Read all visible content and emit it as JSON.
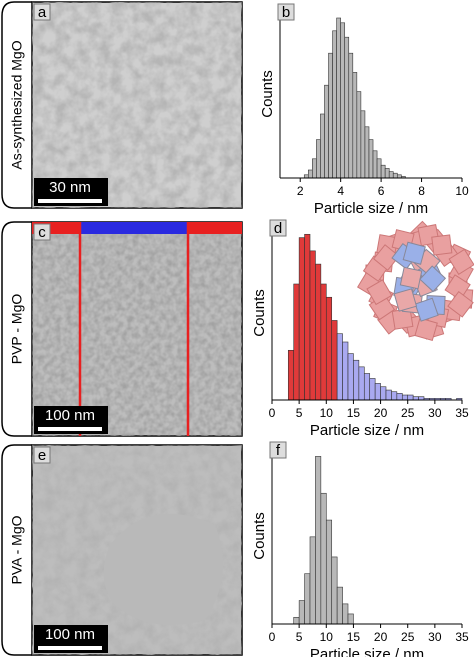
{
  "panels": [
    {
      "label": "a",
      "sample": "As-synthesized MgO",
      "scale_bar": "30 nm"
    },
    {
      "label": "c",
      "sample": "PVP - MgO",
      "scale_bar": "100 nm"
    },
    {
      "label": "e",
      "sample": "PVA - MgO",
      "scale_bar": "100 nm"
    }
  ],
  "chart_data": [
    {
      "type": "histogram",
      "label": "b",
      "xlabel": "Particle size / nm",
      "ylabel": "Counts",
      "xlim": [
        1,
        10
      ],
      "xticks": [
        2,
        4,
        6,
        8,
        10
      ],
      "ylim": [
        0,
        105
      ],
      "series": [
        {
          "color": "#b8b8b8",
          "bins": [
            2.2,
            2.4,
            2.6,
            2.8,
            3.0,
            3.2,
            3.4,
            3.6,
            3.8,
            4.0,
            4.2,
            4.4,
            4.6,
            4.8,
            5.0,
            5.2,
            5.4,
            5.6,
            5.8,
            6.0,
            6.2,
            6.4,
            6.6,
            6.8,
            7.0,
            7.2
          ],
          "values": [
            2,
            5,
            12,
            24,
            40,
            58,
            78,
            92,
            100,
            97,
            88,
            78,
            66,
            54,
            42,
            32,
            24,
            17,
            12,
            8,
            6,
            4,
            3,
            2,
            1
          ]
        }
      ]
    },
    {
      "type": "histogram",
      "label": "d",
      "xlabel": "Particle size / nm",
      "ylabel": "Counts",
      "xlim": [
        0,
        35
      ],
      "xticks": [
        0,
        5,
        10,
        15,
        20,
        25,
        30,
        35
      ],
      "ylim": [
        0,
        105
      ],
      "series": [
        {
          "color": "#e03a3a",
          "bins": [
            3,
            4,
            5,
            6,
            7,
            8,
            9,
            10,
            11,
            12
          ],
          "values": [
            30,
            70,
            98,
            100,
            90,
            82,
            70,
            62,
            48
          ]
        },
        {
          "color": "#a9a9f0",
          "bins": [
            12,
            13,
            14,
            15,
            16,
            17,
            18,
            19,
            20,
            21,
            22,
            23,
            24,
            25,
            26,
            27,
            28,
            29,
            30,
            31,
            32,
            33,
            34,
            35
          ],
          "values": [
            40,
            35,
            28,
            24,
            20,
            16,
            13,
            10,
            8,
            6,
            5,
            4,
            3,
            3,
            2,
            2,
            1,
            1,
            1,
            1,
            1,
            0,
            1
          ]
        }
      ]
    },
    {
      "type": "histogram",
      "label": "f",
      "xlabel": "Particle size / nm",
      "ylabel": "Counts",
      "xlim": [
        0,
        35
      ],
      "xticks": [
        0,
        5,
        10,
        15,
        20,
        25,
        30,
        35
      ],
      "ylim": [
        0,
        105
      ],
      "series": [
        {
          "color": "#b8b8b8",
          "bins": [
            4,
            5,
            6,
            7,
            8,
            9,
            10,
            11,
            12,
            13,
            14,
            15
          ],
          "values": [
            4,
            14,
            30,
            52,
            100,
            78,
            62,
            40,
            22,
            12,
            6
          ]
        }
      ]
    }
  ]
}
